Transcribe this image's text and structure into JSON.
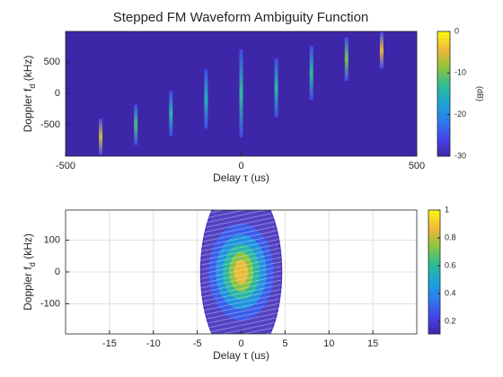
{
  "chart_data": [
    {
      "type": "heatmap",
      "title": "Stepped FM Waveform Ambiguity Function",
      "xlabel": "Delay τ (us)",
      "ylabel": "Doppler f_d (kHz)",
      "xlim": [
        -500,
        500
      ],
      "xticks": [
        -500,
        0,
        500
      ],
      "ylim": [
        -1000,
        990
      ],
      "yticks": [
        -500,
        0,
        500
      ],
      "clim": [
        -30,
        0
      ],
      "cticks": [
        -30,
        -20,
        -10,
        0
      ],
      "colorbar_label": "(dB)",
      "colormap": [
        "#3e26a8",
        "#4444ec",
        "#2b7cf0",
        "#1aa6d6",
        "#2ebd93",
        "#8fc53b",
        "#f2b63a",
        "#f9fb0e"
      ],
      "ridges": [
        {
          "delay": -400,
          "doppler": [
            -980,
            -400
          ],
          "peak": -6
        },
        {
          "delay": -300,
          "doppler": [
            -820,
            -180
          ],
          "peak": -12
        },
        {
          "delay": -200,
          "doppler": [
            -680,
            40
          ],
          "peak": -14
        },
        {
          "delay": -100,
          "doppler": [
            -560,
            380
          ],
          "peak": -15
        },
        {
          "delay": 0,
          "doppler": [
            -700,
            700
          ],
          "peak": -13
        },
        {
          "delay": 100,
          "doppler": [
            -380,
            560
          ],
          "peak": -14
        },
        {
          "delay": 200,
          "doppler": [
            -100,
            760
          ],
          "peak": -13
        },
        {
          "delay": 300,
          "doppler": [
            200,
            900
          ],
          "peak": -10
        },
        {
          "delay": 400,
          "doppler": [
            400,
            980
          ],
          "peak": -5
        }
      ]
    },
    {
      "type": "contour",
      "xlabel": "Delay τ (us)",
      "ylabel": "Doppler f_d (kHz)",
      "xlim": [
        -20,
        20
      ],
      "xticks": [
        -15,
        -10,
        -5,
        0,
        5,
        10,
        15
      ],
      "ylim": [
        -195,
        195
      ],
      "yticks": [
        -100,
        0,
        100
      ],
      "grid": true,
      "clim": [
        0.11,
        1
      ],
      "cticks": [
        0.2,
        0.4,
        0.6,
        0.8,
        1
      ],
      "contours": [
        {
          "level": 0.15,
          "delay_halfwidth": 4.6,
          "doppler_halfheight": 280
        },
        {
          "level": 0.3,
          "delay_halfwidth": 3.6,
          "doppler_halfheight": 150
        },
        {
          "level": 0.45,
          "delay_halfwidth": 2.8,
          "doppler_halfheight": 115
        },
        {
          "level": 0.6,
          "delay_halfwidth": 2,
          "doppler_halfheight": 85
        },
        {
          "level": 0.75,
          "delay_halfwidth": 1.3,
          "doppler_halfheight": 60
        },
        {
          "level": 0.88,
          "delay_halfwidth": 0.7,
          "doppler_halfheight": 35
        }
      ]
    }
  ]
}
